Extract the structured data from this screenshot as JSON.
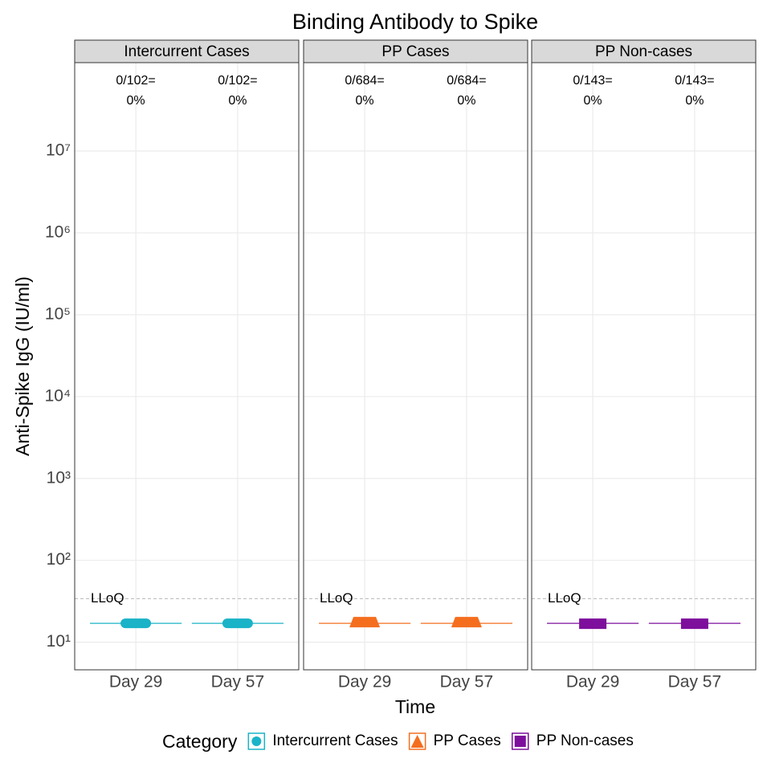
{
  "chart_data": {
    "type": "box",
    "title": "Binding Antibody to Spike",
    "x_label": "Time",
    "y_label": "Anti-Spike IgG (IU/ml)",
    "legend_title": "Category",
    "log_scale": true,
    "grid": true,
    "ylim": [
      4.6,
      120000000
    ],
    "yticks": [
      {
        "value": 10,
        "label": "10¹"
      },
      {
        "value": 100,
        "label": "10²"
      },
      {
        "value": 1000,
        "label": "10³"
      },
      {
        "value": 10000,
        "label": "10⁴"
      },
      {
        "value": 100000,
        "label": "10⁵"
      },
      {
        "value": 1000000,
        "label": "10⁶"
      },
      {
        "value": 10000000,
        "label": "10⁷"
      }
    ],
    "lloq": 34,
    "lloq_label": "LLoQ",
    "panels": [
      {
        "name": "Intercurrent Cases",
        "color": "#1ab3c7",
        "marker": "circle",
        "categories": [
          "Day 29",
          "Day 57"
        ],
        "response_labels": [
          [
            "0/102=",
            "0%"
          ],
          [
            "0/102=",
            "0%"
          ]
        ],
        "boxes": [
          {
            "min": 17,
            "q1": 17,
            "median": 17,
            "q3": 17,
            "max": 17
          },
          {
            "min": 17,
            "q1": 17,
            "median": 17,
            "q3": 17,
            "max": 17
          }
        ]
      },
      {
        "name": "PP Cases",
        "color": "#f46e1e",
        "marker": "triangle",
        "categories": [
          "Day 29",
          "Day 57"
        ],
        "response_labels": [
          [
            "0/684=",
            "0%"
          ],
          [
            "0/684=",
            "0%"
          ]
        ],
        "boxes": [
          {
            "min": 17,
            "q1": 17,
            "median": 17,
            "q3": 17,
            "max": 17
          },
          {
            "min": 17,
            "q1": 17,
            "median": 17,
            "q3": 17,
            "max": 17
          }
        ]
      },
      {
        "name": "PP Non-cases",
        "color": "#7d0f9c",
        "marker": "square",
        "categories": [
          "Day 29",
          "Day 57"
        ],
        "response_labels": [
          [
            "0/143=",
            "0%"
          ],
          [
            "0/143=",
            "0%"
          ]
        ],
        "boxes": [
          {
            "min": 17,
            "q1": 17,
            "median": 17,
            "q3": 17,
            "max": 17
          },
          {
            "min": 17,
            "q1": 17,
            "median": 17,
            "q3": 17,
            "max": 17
          }
        ]
      }
    ]
  }
}
